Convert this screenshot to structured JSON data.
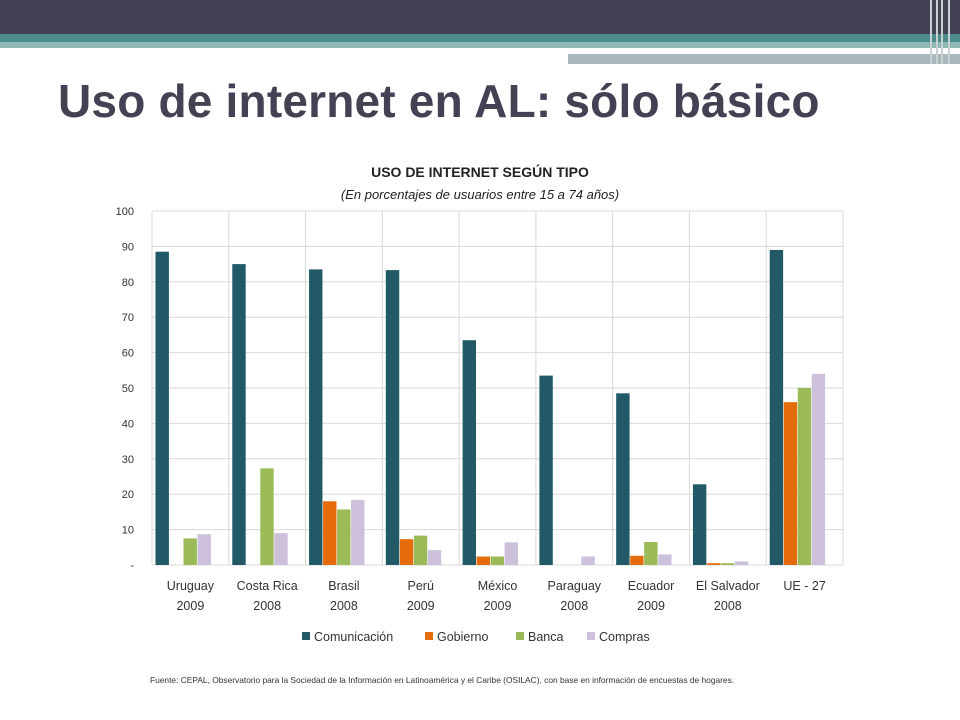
{
  "slide": {
    "title": "Uso de internet en AL: sólo básico",
    "source": "Fuente: CEPAL, Observatorio para la Sociedad de la Información en Latinoamérica y el Caribe (OSILAC), con base en información de encuestas de hogares."
  },
  "chart_data": {
    "type": "bar",
    "title": "USO DE INTERNET SEGÚN TIPO",
    "subtitle": "(En porcentajes de usuarios entre 15 a 74 años)",
    "categories": [
      [
        "Uruguay",
        "2009"
      ],
      [
        "Costa Rica",
        "2008"
      ],
      [
        "Brasil",
        "2008"
      ],
      [
        "Perú",
        "2009"
      ],
      [
        "México",
        "2009"
      ],
      [
        "Paraguay",
        "2008"
      ],
      [
        "Ecuador",
        "2009"
      ],
      [
        "El Salvador",
        "2008"
      ],
      [
        "UE - 27",
        ""
      ]
    ],
    "yticks": [
      "-",
      "10",
      "20",
      "30",
      "40",
      "50",
      "60",
      "70",
      "80",
      "90",
      "100"
    ],
    "ylim": [
      0,
      100
    ],
    "grid": true,
    "legend": "bottom",
    "series": [
      {
        "name": "Comunicación",
        "color": "#215967",
        "values": [
          88.5,
          85,
          83.5,
          83.3,
          63.5,
          53.5,
          48.5,
          22.8,
          89
        ]
      },
      {
        "name": "Gobierno",
        "color": "#e46c0a",
        "values": [
          0,
          0,
          18,
          7.3,
          2.4,
          0,
          2.6,
          0.5,
          46
        ]
      },
      {
        "name": "Banca",
        "color": "#9bbb59",
        "values": [
          7.5,
          27.3,
          15.7,
          8.3,
          2.4,
          0,
          6.5,
          0.5,
          50
        ]
      },
      {
        "name": "Compras",
        "color": "#ccc0da",
        "values": [
          8.7,
          9,
          18.4,
          4.2,
          6.4,
          2.4,
          3,
          1,
          54
        ]
      }
    ]
  }
}
